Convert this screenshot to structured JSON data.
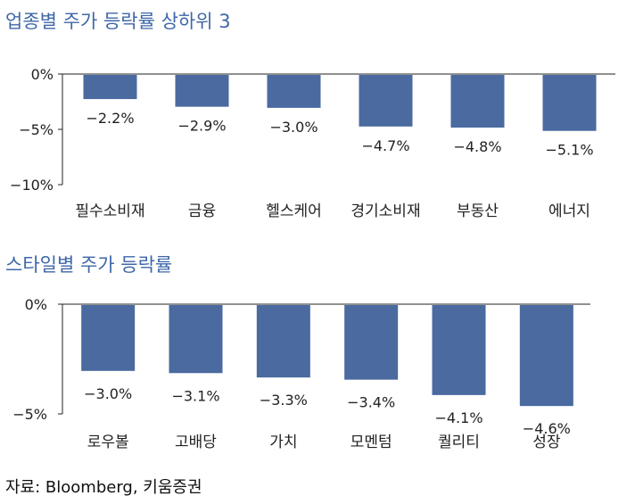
{
  "colors": {
    "bar": "#4a6aa0",
    "title": "#3f67a8",
    "axis": "#222222"
  },
  "chart_data": [
    {
      "type": "bar",
      "title": "업종별 주가 등락률 상하위 3",
      "categories": [
        "필수소비재",
        "금융",
        "헬스케어",
        "경기소비재",
        "부동산",
        "에너지"
      ],
      "values": [
        -2.2,
        -2.9,
        -3.0,
        -4.7,
        -4.8,
        -5.1
      ],
      "data_labels": [
        "−2.2%",
        "−2.9%",
        "−3.0%",
        "−4.7%",
        "−4.8%",
        "−5.1%"
      ],
      "yticks": [
        "0%",
        "−5%",
        "−10%"
      ],
      "ylim": [
        -10,
        0
      ],
      "grid": false
    },
    {
      "type": "bar",
      "title": "스타일별 주가 등락률",
      "categories": [
        "로우볼",
        "고배당",
        "가치",
        "모멘텀",
        "퀄리티",
        "성장"
      ],
      "values": [
        -3.0,
        -3.1,
        -3.3,
        -3.4,
        -4.1,
        -4.6
      ],
      "data_labels": [
        "−3.0%",
        "−3.1%",
        "−3.3%",
        "−3.4%",
        "−4.1%",
        "−4.6%"
      ],
      "yticks": [
        "0%",
        "−5%"
      ],
      "ylim": [
        -5,
        0
      ],
      "grid": false
    }
  ],
  "source": "자료: Bloomberg, 키움증권"
}
